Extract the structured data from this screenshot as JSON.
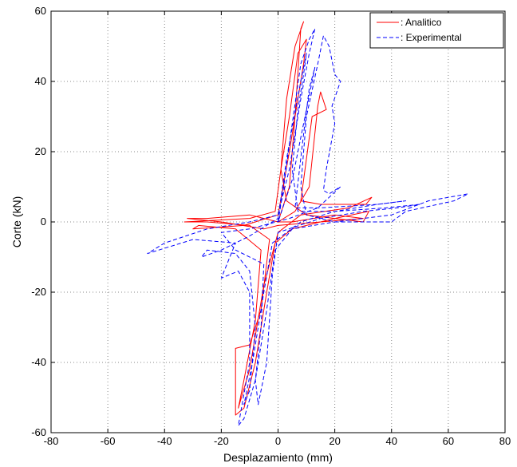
{
  "chart_data": {
    "type": "line",
    "xlabel": "Desplazamiento (mm)",
    "ylabel": "Corte (kN)",
    "xlim": [
      -80,
      80
    ],
    "ylim": [
      -60,
      60
    ],
    "xticks": [
      -80,
      -60,
      -40,
      -20,
      0,
      20,
      40,
      60,
      80
    ],
    "yticks": [
      -60,
      -40,
      -20,
      0,
      20,
      40,
      60
    ],
    "xtick_labels": [
      "-80",
      "-60",
      "-40",
      "-20",
      "0",
      "20",
      "40",
      "60",
      "80"
    ],
    "ytick_labels": [
      "-60",
      "-40",
      "-20",
      "0",
      "20",
      "40",
      "60"
    ],
    "grid": true,
    "grid_style": "dotted",
    "legend_position": "top-right",
    "series": [
      {
        "name": ": Analitico",
        "color": "#ff0000",
        "style": "solid",
        "points": [
          [
            0,
            0
          ],
          [
            4,
            10
          ],
          [
            6,
            30
          ],
          [
            8,
            55
          ],
          [
            9,
            57
          ],
          [
            6,
            50
          ],
          [
            3,
            35
          ],
          [
            1,
            15
          ],
          [
            -1,
            3
          ],
          [
            -10,
            1
          ],
          [
            -33,
            0
          ],
          [
            -25,
            0
          ],
          [
            -10,
            -1
          ],
          [
            -3,
            -5
          ],
          [
            -6,
            -25
          ],
          [
            -10,
            -35
          ],
          [
            -15,
            -36
          ],
          [
            -15,
            -55
          ],
          [
            -12,
            -53
          ],
          [
            -8,
            -40
          ],
          [
            -4,
            -20
          ],
          [
            -1,
            -6
          ],
          [
            5,
            -2
          ],
          [
            20,
            1
          ],
          [
            32,
            3
          ],
          [
            30,
            0
          ],
          [
            10,
            2
          ],
          [
            3,
            6
          ],
          [
            1,
            15
          ],
          [
            4,
            30
          ],
          [
            7,
            48
          ],
          [
            10,
            52
          ],
          [
            9,
            45
          ],
          [
            4,
            20
          ],
          [
            0,
            2
          ],
          [
            -12,
            -1
          ],
          [
            -30,
            -2
          ],
          [
            -28,
            -1
          ],
          [
            -15,
            -2
          ],
          [
            -6,
            -8
          ],
          [
            -8,
            -28
          ],
          [
            -12,
            -45
          ],
          [
            -14,
            -53
          ],
          [
            -10,
            -42
          ],
          [
            -5,
            -18
          ],
          [
            0,
            -3
          ],
          [
            8,
            2
          ],
          [
            25,
            4
          ],
          [
            33,
            7
          ],
          [
            31,
            5
          ],
          [
            15,
            5
          ],
          [
            8,
            6
          ],
          [
            12,
            30
          ],
          [
            17,
            32
          ],
          [
            15,
            37
          ],
          [
            14,
            33
          ],
          [
            11,
            10
          ],
          [
            6,
            3
          ],
          [
            0,
            0
          ],
          [
            -10,
            2
          ],
          [
            -25,
            1
          ],
          [
            -32,
            1
          ],
          [
            -20,
            0
          ],
          [
            -5,
            -2
          ],
          [
            0,
            -1
          ],
          [
            15,
            0
          ],
          [
            30,
            1
          ],
          [
            20,
            2
          ],
          [
            5,
            0
          ],
          [
            0,
            0
          ]
        ]
      },
      {
        "name": ": Experimental",
        "color": "#0000ff",
        "style": "dashed",
        "points": [
          [
            0,
            0
          ],
          [
            2,
            10
          ],
          [
            5,
            28
          ],
          [
            8,
            45
          ],
          [
            11,
            52
          ],
          [
            13,
            55
          ],
          [
            11,
            48
          ],
          [
            8,
            35
          ],
          [
            4,
            15
          ],
          [
            0,
            2
          ],
          [
            -10,
            0
          ],
          [
            -25,
            -2
          ],
          [
            -40,
            -6
          ],
          [
            -46,
            -9
          ],
          [
            -42,
            -8
          ],
          [
            -30,
            -5
          ],
          [
            -15,
            -6
          ],
          [
            -20,
            -16
          ],
          [
            -14,
            -14
          ],
          [
            -10,
            -20
          ],
          [
            -10,
            -40
          ],
          [
            -14,
            -58
          ],
          [
            -12,
            -56
          ],
          [
            -8,
            -45
          ],
          [
            -4,
            -25
          ],
          [
            -1,
            -8
          ],
          [
            5,
            -2
          ],
          [
            20,
            0
          ],
          [
            40,
            2
          ],
          [
            53,
            6
          ],
          [
            60,
            7
          ],
          [
            67,
            8
          ],
          [
            62,
            6
          ],
          [
            45,
            3
          ],
          [
            40,
            0
          ],
          [
            20,
            0
          ],
          [
            10,
            2
          ],
          [
            8,
            10
          ],
          [
            10,
            30
          ],
          [
            14,
            45
          ],
          [
            16,
            53
          ],
          [
            18,
            50
          ],
          [
            20,
            42
          ],
          [
            22,
            40
          ],
          [
            19,
            33
          ],
          [
            20,
            28
          ],
          [
            17,
            15
          ],
          [
            16,
            9
          ],
          [
            18,
            8
          ],
          [
            22,
            10
          ],
          [
            14,
            4
          ],
          [
            4,
            1
          ],
          [
            -10,
            -2
          ],
          [
            -20,
            -3
          ],
          [
            -15,
            -8
          ],
          [
            -5,
            -12
          ],
          [
            -6,
            -30
          ],
          [
            -8,
            -45
          ],
          [
            -7,
            -52
          ],
          [
            -4,
            -40
          ],
          [
            -2,
            -15
          ],
          [
            0,
            -3
          ],
          [
            15,
            1
          ],
          [
            30,
            3
          ],
          [
            42,
            4
          ],
          [
            50,
            5
          ],
          [
            38,
            4
          ],
          [
            20,
            3
          ],
          [
            7,
            3
          ],
          [
            5,
            15
          ],
          [
            7,
            32
          ],
          [
            9,
            42
          ],
          [
            10,
            48
          ],
          [
            8,
            40
          ],
          [
            3,
            18
          ],
          [
            0,
            1
          ],
          [
            -10,
            -4
          ],
          [
            -20,
            -8
          ],
          [
            -27,
            -10
          ],
          [
            -25,
            -8
          ],
          [
            -15,
            -9
          ],
          [
            -10,
            -14
          ],
          [
            -8,
            -30
          ],
          [
            -10,
            -48
          ],
          [
            -12,
            -52
          ],
          [
            -9,
            -40
          ],
          [
            -5,
            -20
          ],
          [
            -2,
            -6
          ],
          [
            8,
            0
          ],
          [
            20,
            3
          ],
          [
            35,
            5
          ],
          [
            45,
            6
          ],
          [
            35,
            5
          ],
          [
            15,
            4
          ],
          [
            6,
            4
          ],
          [
            9,
            25
          ],
          [
            11,
            38
          ],
          [
            13,
            44
          ],
          [
            10,
            32
          ],
          [
            5,
            12
          ],
          [
            0,
            0
          ]
        ]
      }
    ]
  }
}
